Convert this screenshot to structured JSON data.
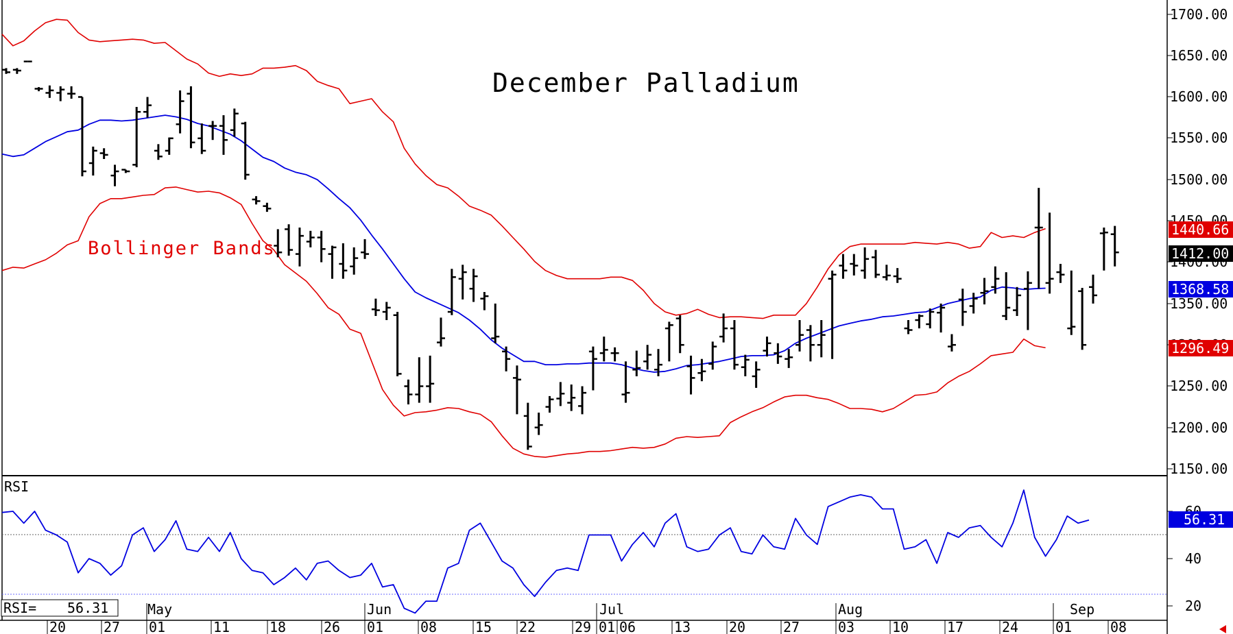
{
  "chart_data": {
    "type": "ohlc_bar",
    "title": "December Palladium",
    "annotation": "Bollinger Bands",
    "price_axis": {
      "ylim": [
        1150,
        1710
      ],
      "ticks": [
        "1700.00",
        "1650.00",
        "1600.00",
        "1550.00",
        "1500.00",
        "1450.00",
        "1400.00",
        "1350.00",
        "1300.00",
        "1250.00",
        "1200.00",
        "1150.00"
      ]
    },
    "rsi_axis": {
      "ylim": [
        17,
        75
      ],
      "ticks": [
        "60",
        "40",
        "20"
      ]
    },
    "x_tick_labels": [
      "20",
      "27",
      "01",
      "11",
      "18",
      "26",
      "01",
      "08",
      "15",
      "22",
      "29",
      "01",
      "06",
      "13",
      "20",
      "27",
      "03",
      "10",
      "17",
      "24",
      "01",
      "08"
    ],
    "month_labels": [
      "May",
      "Jun",
      "Jul",
      "Aug",
      "Sep"
    ],
    "last_values": {
      "upper_band": "1440.66",
      "close": "1412.00",
      "middle_band": "1368.58",
      "lower_band": "1296.49",
      "rsi": "56.31"
    },
    "rsi_panel_label": "RSI",
    "rsi_readout_label": "RSI=",
    "rsi_readout_value": "56.31",
    "colors": {
      "bars": "#000000",
      "upper_band": "#e00000",
      "lower_band": "#e00000",
      "middle_band": "#0000e0",
      "rsi_line": "#0000e0",
      "close_badge": "#000000"
    },
    "series": [
      {
        "name": "upper_band",
        "values": [
          1676,
          1662,
          1668,
          1680,
          1690,
          1694,
          1693,
          1678,
          1669,
          1667,
          1668,
          1669,
          1670,
          1669,
          1665,
          1666,
          1656,
          1646,
          1640,
          1629,
          1625,
          1628,
          1626,
          1628,
          1635,
          1635,
          1636,
          1638,
          1632,
          1619,
          1614,
          1610,
          1592,
          1595,
          1598,
          1582,
          1570,
          1538,
          1519,
          1505,
          1494,
          1490,
          1480,
          1468,
          1463,
          1457,
          1444,
          1430,
          1416,
          1401,
          1390,
          1384,
          1380,
          1380,
          1380,
          1380,
          1382,
          1382,
          1378,
          1366,
          1350,
          1340,
          1336,
          1338,
          1343,
          1337,
          1333,
          1334,
          1334,
          1333,
          1332,
          1336,
          1336,
          1336,
          1350,
          1370,
          1392,
          1409,
          1419,
          1422,
          1422,
          1422,
          1422,
          1422,
          1424,
          1423,
          1422,
          1424,
          1422,
          1417,
          1419,
          1436,
          1430,
          1432,
          1430,
          1436,
          1440.66
        ]
      },
      {
        "name": "middle_band",
        "values": [
          1531,
          1528,
          1530,
          1538,
          1546,
          1552,
          1558,
          1560,
          1567,
          1572,
          1572,
          1571,
          1572,
          1574,
          1576,
          1578,
          1576,
          1573,
          1568,
          1565,
          1560,
          1555,
          1547,
          1537,
          1527,
          1522,
          1514,
          1509,
          1506,
          1500,
          1489,
          1477,
          1466,
          1451,
          1433,
          1416,
          1398,
          1380,
          1364,
          1357,
          1351,
          1345,
          1339,
          1330,
          1319,
          1306,
          1296,
          1288,
          1280,
          1280,
          1276,
          1276,
          1277,
          1277,
          1278,
          1278,
          1278,
          1276,
          1272,
          1269,
          1267,
          1268,
          1271,
          1275,
          1276,
          1278,
          1280,
          1283,
          1286,
          1287,
          1287,
          1288,
          1293,
          1302,
          1308,
          1313,
          1318,
          1323,
          1326,
          1329,
          1331,
          1334,
          1335,
          1337,
          1339,
          1340,
          1345,
          1350,
          1353,
          1356,
          1358,
          1366,
          1370,
          1369,
          1367,
          1368,
          1368.58
        ]
      },
      {
        "name": "lower_band",
        "values": [
          1390,
          1394,
          1393,
          1398,
          1403,
          1411,
          1421,
          1426,
          1455,
          1471,
          1477,
          1477,
          1479,
          1481,
          1482,
          1490,
          1491,
          1488,
          1485,
          1486,
          1484,
          1478,
          1470,
          1447,
          1426,
          1415,
          1397,
          1387,
          1377,
          1362,
          1345,
          1337,
          1319,
          1314,
          1280,
          1246,
          1227,
          1214,
          1218,
          1219,
          1221,
          1224,
          1223,
          1219,
          1216,
          1207,
          1190,
          1175,
          1168,
          1165,
          1164,
          1166,
          1168,
          1169,
          1171,
          1171,
          1172,
          1174,
          1176,
          1175,
          1176,
          1180,
          1187,
          1189,
          1188,
          1189,
          1190,
          1206,
          1213,
          1219,
          1224,
          1231,
          1237,
          1239,
          1239,
          1236,
          1234,
          1229,
          1223,
          1223,
          1222,
          1219,
          1223,
          1231,
          1239,
          1240,
          1243,
          1254,
          1262,
          1268,
          1277,
          1287,
          1289,
          1291,
          1307,
          1299,
          1296.49
        ]
      },
      {
        "name": "rsi",
        "values": [
          59.5,
          60,
          55,
          60,
          52,
          50,
          47,
          34,
          40,
          38,
          33,
          37,
          50,
          53,
          43,
          48,
          56,
          44,
          43,
          49,
          43,
          51,
          40,
          35,
          34,
          29,
          32,
          36,
          31,
          38,
          39,
          35,
          32,
          33,
          38,
          28,
          29,
          19,
          17,
          22,
          22,
          36,
          38,
          52,
          55,
          47,
          39,
          36,
          29,
          24,
          30,
          35,
          36,
          35,
          50,
          50,
          50,
          39,
          46,
          51,
          45,
          55,
          59,
          45,
          43,
          44,
          50,
          53,
          43,
          42,
          50,
          45,
          44,
          57,
          50,
          46,
          62,
          64,
          66,
          67,
          66,
          61,
          61,
          44,
          45,
          48,
          38,
          51,
          49,
          53,
          54,
          49,
          45,
          55,
          69,
          49,
          41,
          48,
          58,
          55,
          56.31
        ]
      }
    ],
    "ohlc_bars": [
      [
        1633,
        1635,
        1628,
        1630
      ],
      [
        1633,
        1635,
        1628,
        1632
      ],
      [
        1643,
        1643,
        1643,
        1643
      ],
      [
        1610,
        1612,
        1607,
        1610
      ],
      [
        1605,
        1614,
        1599,
        1608
      ],
      [
        1605,
        1613,
        1595,
        1609
      ],
      [
        1604,
        1613,
        1598,
        1604
      ],
      [
        1600,
        1600,
        1504,
        1510
      ],
      [
        1520,
        1540,
        1505,
        1535
      ],
      [
        1532,
        1538,
        1525,
        1530
      ],
      [
        1505,
        1518,
        1492,
        1510
      ],
      [
        1512,
        1512,
        1508,
        1510
      ],
      [
        1518,
        1588,
        1515,
        1582
      ],
      [
        1582,
        1600,
        1575,
        1590
      ],
      [
        1535,
        1543,
        1524,
        1528
      ],
      [
        1535,
        1551,
        1530,
        1550
      ],
      [
        1567,
        1608,
        1556,
        1595
      ],
      [
        1604,
        1613,
        1538,
        1545
      ],
      [
        1550,
        1568,
        1531,
        1535
      ],
      [
        1565,
        1571,
        1548,
        1565
      ],
      [
        1565,
        1578,
        1530,
        1548
      ],
      [
        1560,
        1586,
        1552,
        1580
      ],
      [
        1568,
        1570,
        1500,
        1506
      ],
      [
        1476,
        1480,
        1470,
        1474
      ],
      [
        1468,
        1472,
        1461,
        1465
      ],
      [
        1420,
        1440,
        1406,
        1412
      ],
      [
        1440,
        1446,
        1408,
        1415
      ],
      [
        1410,
        1442,
        1395,
        1432
      ],
      [
        1425,
        1438,
        1418,
        1430
      ],
      [
        1430,
        1438,
        1400,
        1416
      ],
      [
        1410,
        1420,
        1380,
        1418
      ],
      [
        1398,
        1423,
        1380,
        1390
      ],
      [
        1395,
        1418,
        1385,
        1405
      ],
      [
        1412,
        1428,
        1404,
        1410
      ],
      [
        1343,
        1356,
        1335,
        1342
      ],
      [
        1340,
        1352,
        1330,
        1345
      ],
      [
        1336,
        1340,
        1262,
        1265
      ],
      [
        1250,
        1258,
        1228,
        1240
      ],
      [
        1240,
        1285,
        1230,
        1250
      ],
      [
        1250,
        1287,
        1230,
        1253
      ],
      [
        1303,
        1333,
        1298,
        1308
      ],
      [
        1340,
        1392,
        1336,
        1382
      ],
      [
        1380,
        1397,
        1355,
        1388
      ],
      [
        1368,
        1392,
        1352,
        1383
      ],
      [
        1356,
        1364,
        1342,
        1359
      ],
      [
        1308,
        1350,
        1302,
        1310
      ],
      [
        1292,
        1298,
        1268,
        1283
      ],
      [
        1260,
        1275,
        1216,
        1258
      ],
      [
        1214,
        1230,
        1173,
        1177
      ],
      [
        1200,
        1218,
        1191,
        1203
      ],
      [
        1225,
        1238,
        1218,
        1234
      ],
      [
        1235,
        1255,
        1226,
        1241
      ],
      [
        1230,
        1252,
        1220,
        1236
      ],
      [
        1226,
        1250,
        1216,
        1242
      ],
      [
        1292,
        1298,
        1245,
        1283
      ],
      [
        1290,
        1310,
        1280,
        1294
      ],
      [
        1290,
        1297,
        1280,
        1290
      ],
      [
        1240,
        1280,
        1230,
        1242
      ],
      [
        1270,
        1293,
        1262,
        1272
      ],
      [
        1280,
        1300,
        1270,
        1288
      ],
      [
        1270,
        1295,
        1262,
        1276
      ],
      [
        1320,
        1328,
        1280,
        1324
      ],
      [
        1332,
        1336,
        1290,
        1300
      ],
      [
        1274,
        1287,
        1240,
        1260
      ],
      [
        1266,
        1283,
        1256,
        1268
      ],
      [
        1277,
        1304,
        1270,
        1298
      ],
      [
        1310,
        1338,
        1303,
        1320
      ],
      [
        1320,
        1330,
        1270,
        1276
      ],
      [
        1273,
        1288,
        1262,
        1282
      ],
      [
        1262,
        1280,
        1248,
        1270
      ],
      [
        1293,
        1310,
        1286,
        1302
      ],
      [
        1290,
        1302,
        1277,
        1286
      ],
      [
        1283,
        1295,
        1272,
        1285
      ],
      [
        1300,
        1330,
        1292,
        1312
      ],
      [
        1318,
        1324,
        1280,
        1300
      ],
      [
        1300,
        1330,
        1285,
        1312
      ],
      [
        1380,
        1390,
        1283,
        1385
      ],
      [
        1396,
        1410,
        1380,
        1390
      ],
      [
        1398,
        1410,
        1384,
        1396
      ],
      [
        1390,
        1418,
        1380,
        1404
      ],
      [
        1406,
        1415,
        1381,
        1385
      ],
      [
        1382,
        1397,
        1378,
        1384
      ],
      [
        1383,
        1393,
        1375,
        1380
      ],
      [
        1320,
        1330,
        1313,
        1318
      ],
      [
        1330,
        1337,
        1320,
        1335
      ],
      [
        1325,
        1344,
        1320,
        1340
      ],
      [
        1339,
        1350,
        1315,
        1345
      ],
      [
        1298,
        1313,
        1292,
        1300
      ],
      [
        1355,
        1368,
        1323,
        1340
      ],
      [
        1347,
        1363,
        1338,
        1356
      ],
      [
        1363,
        1381,
        1349,
        1365
      ],
      [
        1370,
        1395,
        1362,
        1380
      ],
      [
        1335,
        1388,
        1330,
        1345
      ],
      [
        1342,
        1370,
        1335,
        1360
      ],
      [
        1368,
        1389,
        1318,
        1375
      ],
      [
        1442,
        1490,
        1368,
        1442
      ],
      [
        1375,
        1460,
        1362,
        1380
      ],
      [
        1388,
        1398,
        1375,
        1385
      ],
      [
        1320,
        1390,
        1312,
        1322
      ],
      [
        1365,
        1369,
        1294,
        1300
      ],
      [
        1370,
        1385,
        1350,
        1360
      ],
      [
        1435,
        1442,
        1390,
        1436
      ],
      [
        1434,
        1444,
        1395,
        1412
      ]
    ]
  }
}
